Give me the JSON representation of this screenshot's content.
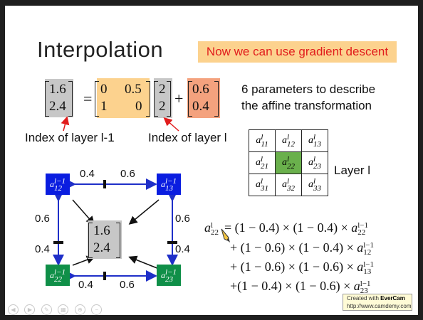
{
  "slide": {
    "title": "Interpolation",
    "callout": "Now we can use gradient descent",
    "equation": {
      "lhs": [
        "1.6",
        "2.4"
      ],
      "matrix": [
        [
          "0",
          "0.5"
        ],
        [
          "1",
          "0"
        ]
      ],
      "vec": [
        "2",
        "2"
      ],
      "plus": "+",
      "equals": "=",
      "bias": [
        "0.6",
        "0.4"
      ]
    },
    "params_text": [
      "6 parameters to describe",
      "the affine transformation"
    ],
    "label_prev": "Index of layer l-1",
    "label_curr": "Index of layer l",
    "layer_label": "Layer l",
    "grid": [
      [
        "11",
        "12",
        "13"
      ],
      [
        "21",
        "22",
        "23"
      ],
      [
        "31",
        "32",
        "33"
      ]
    ],
    "diagram": {
      "top_a": "0.4",
      "top_b": "0.6",
      "bot_a": "0.4",
      "bot_b": "0.6",
      "left_a": "0.6",
      "left_b": "0.4",
      "right_a": "0.6",
      "right_b": "0.4",
      "center": [
        "1.6",
        "2.4"
      ],
      "nodes": {
        "tl": "12",
        "tr": "13",
        "bl": "22",
        "br": "23"
      }
    },
    "formula": {
      "lhs_sub": "22",
      "lines": [
        {
          "prefix": "= (1 − 0.4) × (1 − 0.4) × ",
          "sub": "22"
        },
        {
          "prefix": "+ (1 − 0.6) × (1 − 0.4) × ",
          "sub": "12"
        },
        {
          "prefix": "+ (1 − 0.6) × (1 − 0.6) × ",
          "sub": "13"
        },
        {
          "prefix": "+(1 −  0.4) × (1 − 0.6) × ",
          "sub": "23"
        }
      ]
    },
    "watermark": {
      "line1": "Created with",
      "brand": "EverCam",
      "line2": "http://www.camdemy.com"
    },
    "colors": {
      "callout_bg": "#fcd28e",
      "callout_text": "#e11c1c",
      "node_blue": "#0a1de0",
      "node_green": "#0f8f48",
      "arrow_blue": "#1f2fc8",
      "arrow_red": "#e11c1c"
    }
  }
}
